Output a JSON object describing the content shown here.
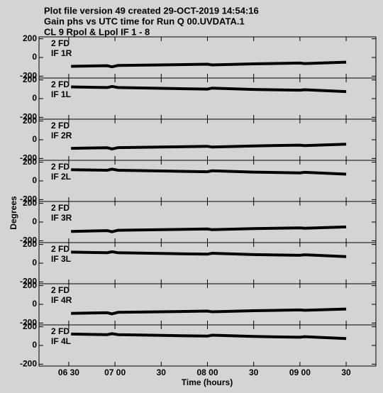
{
  "header": {
    "lines": [
      "Plot file version 49  created 29-OCT-2019 14:54:16",
      "Gain phs vs UTC time for Run Q 00.UVDATA.1",
      "CL 9  Rpol & Lpol  IF 1 - 8"
    ]
  },
  "y_label": "Degrees",
  "x_label": "Time (hours)",
  "chart_data": [
    {
      "type": "line",
      "annotations": [
        "2 FD",
        "IF 1R"
      ],
      "x": [
        31.5,
        55,
        58,
        62,
        90,
        120,
        123,
        150,
        180,
        183,
        210
      ],
      "values": [
        -95,
        -88,
        -100,
        -85,
        -80,
        -72,
        -80,
        -68,
        -60,
        -65,
        -50
      ],
      "xlim": [
        10.7,
        229.3
      ],
      "xticks": [
        30,
        60,
        90,
        120,
        150,
        180,
        210
      ],
      "ylim": [
        -220,
        220
      ],
      "yticks": [
        -200,
        0,
        200
      ]
    },
    {
      "type": "line",
      "annotations": [
        "2 FD",
        "IF 1L"
      ],
      "x": [
        31.5,
        55,
        58,
        62,
        90,
        120,
        123,
        150,
        180,
        183,
        210
      ],
      "values": [
        125,
        118,
        130,
        118,
        110,
        102,
        112,
        98,
        90,
        95,
        75
      ],
      "xlim": [
        10.7,
        229.3
      ],
      "xticks": [
        30,
        60,
        90,
        120,
        150,
        180,
        210
      ],
      "ylim": [
        -220,
        220
      ],
      "yticks": [
        -200,
        0,
        200
      ]
    },
    {
      "type": "line",
      "annotations": [
        "2 FD",
        "IF 2R"
      ],
      "x": [
        31.5,
        55,
        58,
        62,
        90,
        120,
        123,
        150,
        180,
        183,
        210
      ],
      "values": [
        -92,
        -86,
        -98,
        -84,
        -78,
        -70,
        -78,
        -66,
        -58,
        -63,
        -48
      ],
      "xlim": [
        10.7,
        229.3
      ],
      "xticks": [
        30,
        60,
        90,
        120,
        150,
        180,
        210
      ],
      "ylim": [
        -220,
        220
      ],
      "yticks": [
        -200,
        0,
        200
      ]
    },
    {
      "type": "line",
      "annotations": [
        "2 FD",
        "IF 2L"
      ],
      "x": [
        31.5,
        55,
        58,
        62,
        90,
        120,
        123,
        150,
        180,
        183,
        210
      ],
      "values": [
        120,
        114,
        126,
        114,
        106,
        98,
        108,
        94,
        86,
        92,
        72
      ],
      "xlim": [
        10.7,
        229.3
      ],
      "xticks": [
        30,
        60,
        90,
        120,
        150,
        180,
        210
      ],
      "ylim": [
        -220,
        220
      ],
      "yticks": [
        -200,
        0,
        200
      ]
    },
    {
      "type": "line",
      "annotations": [
        "2 FD",
        "IF 3R"
      ],
      "x": [
        31.5,
        55,
        58,
        62,
        90,
        120,
        123,
        150,
        180,
        183,
        210
      ],
      "values": [
        -100,
        -92,
        -104,
        -88,
        -82,
        -74,
        -82,
        -70,
        -62,
        -66,
        -52
      ],
      "xlim": [
        10.7,
        229.3
      ],
      "xticks": [
        30,
        60,
        90,
        120,
        150,
        180,
        210
      ],
      "ylim": [
        -220,
        220
      ],
      "yticks": [
        -200,
        0,
        200
      ]
    },
    {
      "type": "line",
      "annotations": [
        "2 FD",
        "IF 3L"
      ],
      "x": [
        31.5,
        55,
        58,
        62,
        90,
        120,
        123,
        150,
        180,
        183,
        210
      ],
      "values": [
        118,
        112,
        122,
        112,
        104,
        96,
        106,
        92,
        84,
        90,
        70
      ],
      "xlim": [
        10.7,
        229.3
      ],
      "xticks": [
        30,
        60,
        90,
        120,
        150,
        180,
        210
      ],
      "ylim": [
        -220,
        220
      ],
      "yticks": [
        -200,
        0,
        200
      ]
    },
    {
      "type": "line",
      "annotations": [
        "2 FD",
        "IF 4R"
      ],
      "x": [
        31.5,
        55,
        58,
        62,
        90,
        120,
        123,
        150,
        180,
        183,
        210
      ],
      "values": [
        -96,
        -90,
        -102,
        -86,
        -80,
        -72,
        -80,
        -68,
        -60,
        -64,
        -50
      ],
      "xlim": [
        10.7,
        229.3
      ],
      "xticks": [
        30,
        60,
        90,
        120,
        150,
        180,
        210
      ],
      "ylim": [
        -220,
        220
      ],
      "yticks": [
        -200,
        0,
        200
      ]
    },
    {
      "type": "line",
      "annotations": [
        "2 FD",
        "IF 4L"
      ],
      "x": [
        31.5,
        55,
        58,
        62,
        90,
        120,
        123,
        150,
        180,
        183,
        210
      ],
      "values": [
        122,
        116,
        126,
        116,
        108,
        100,
        110,
        96,
        88,
        94,
        74
      ],
      "xlim": [
        10.7,
        229.3
      ],
      "xticks": [
        {
          "value": 30,
          "label": "06 30"
        },
        {
          "value": 60,
          "label": "07 00"
        },
        {
          "value": 90,
          "label": "30"
        },
        {
          "value": 120,
          "label": "08 00"
        },
        {
          "value": 150,
          "label": "30"
        },
        {
          "value": 180,
          "label": "09 00"
        },
        {
          "value": 210,
          "label": "30"
        }
      ],
      "ylim": [
        -220,
        220
      ],
      "yticks": [
        -200,
        0,
        200
      ]
    }
  ]
}
